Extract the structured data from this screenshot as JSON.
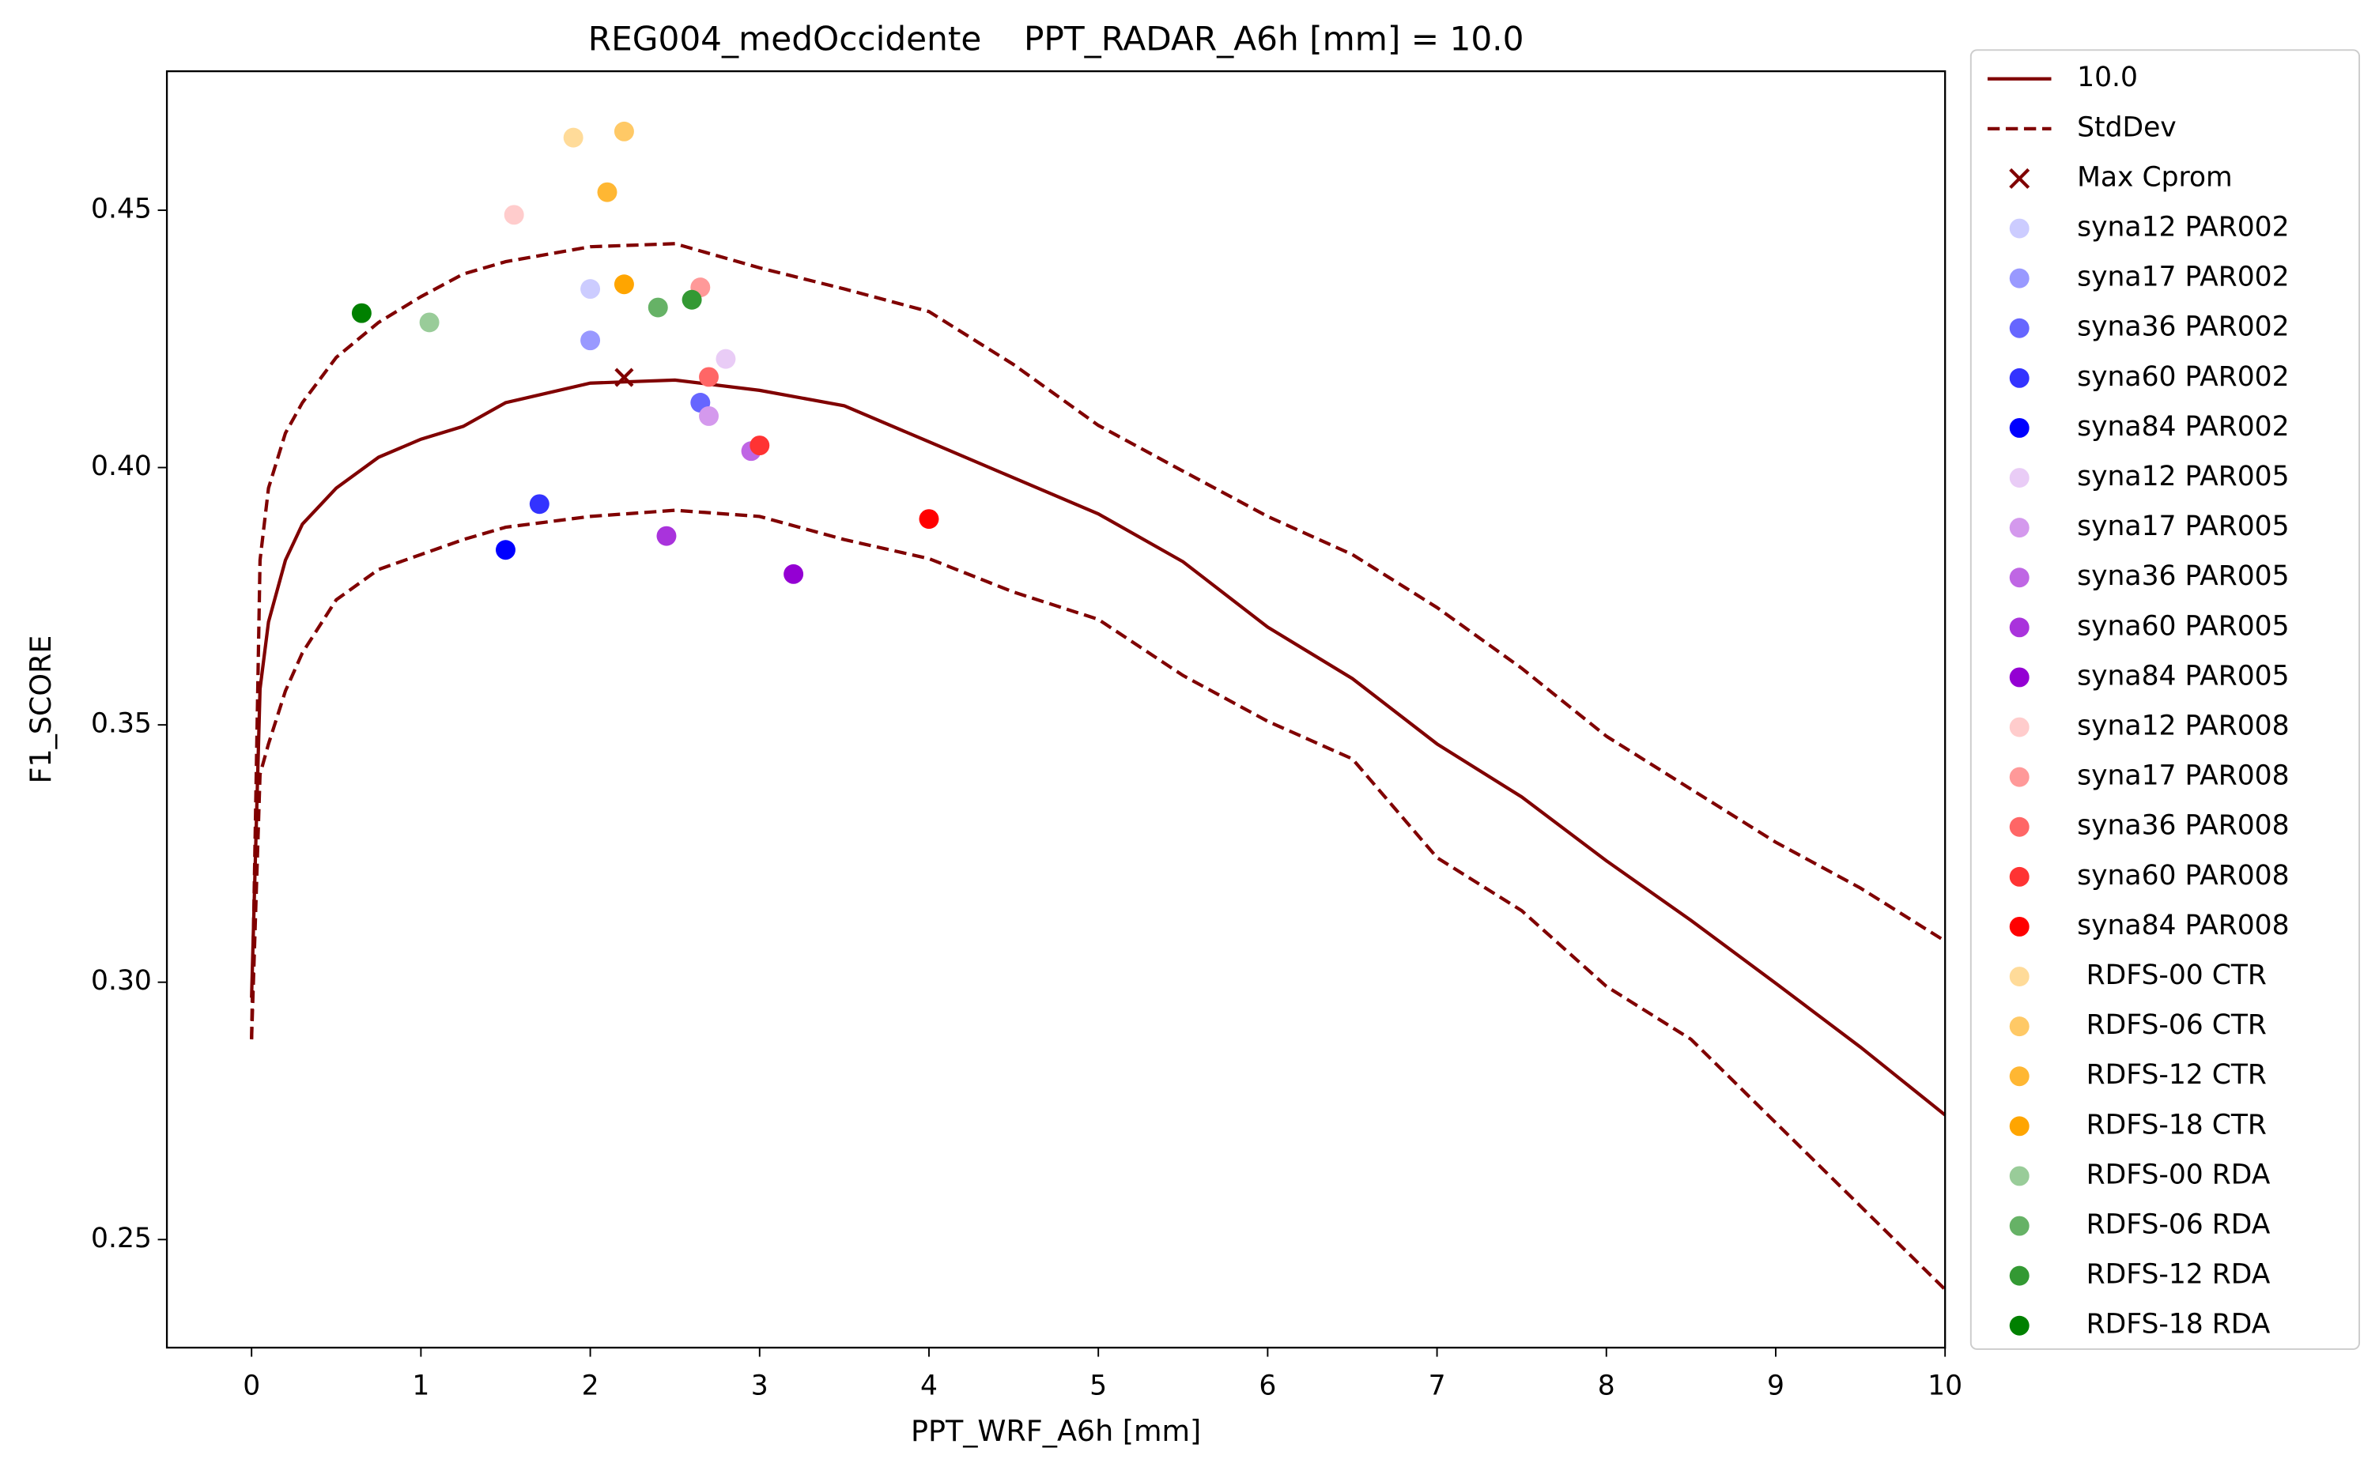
{
  "chart_data": {
    "type": "line",
    "title": "REG004_medOccidente    PPT_RADAR_A6h [mm] = 10.0",
    "xlabel": "PPT_WRF_A6h [mm]",
    "ylabel": "F1_SCORE",
    "xlim": [
      -0.5,
      10
    ],
    "ylim": [
      0.229,
      0.477
    ],
    "xticks": [
      0,
      1,
      2,
      3,
      4,
      5,
      6,
      7,
      8,
      9,
      10
    ],
    "yticks": [
      0.25,
      {
        "value": 0.3,
        "label": "0.30"
      },
      0.35,
      {
        "value": 0.4,
        "label": "0.40"
      },
      0.45
    ],
    "legend": "outside-right",
    "x": [
      0,
      0.05,
      0.1,
      0.2,
      0.3,
      0.5,
      0.75,
      1,
      1.25,
      1.5,
      2,
      2.5,
      3,
      3.5,
      4,
      4.5,
      5,
      5.5,
      6,
      6.5,
      7,
      7.5,
      8,
      8.5,
      9,
      9.5,
      10
    ],
    "series": [
      {
        "name": "10.0",
        "kind": "line",
        "color": "#800000",
        "values": [
          0.297,
          0.357,
          0.37,
          0.382,
          0.389,
          0.396,
          0.402,
          0.4055,
          0.408,
          0.4126,
          0.4164,
          0.417,
          0.415,
          0.412,
          0.405,
          0.398,
          0.391,
          0.3817,
          0.369,
          0.359,
          0.3463,
          0.336,
          0.3236,
          0.312,
          0.2998,
          0.2874,
          0.2742
        ]
      },
      {
        "name": "StdDev",
        "kind": "dashed",
        "color": "#800000",
        "values": [
          0.289,
          0.382,
          0.396,
          0.4067,
          0.4126,
          0.4214,
          0.4282,
          0.4332,
          0.4376,
          0.44,
          0.4429,
          0.4435,
          0.4388,
          0.4347,
          0.4303,
          0.42,
          0.4082,
          0.3993,
          0.3905,
          0.3831,
          0.3728,
          0.361,
          0.3478,
          0.3375,
          0.3272,
          0.3183,
          0.308
        ],
        "values_lower": [
          0.2889,
          0.3404,
          0.3463,
          0.3566,
          0.364,
          0.3743,
          0.3802,
          0.3831,
          0.386,
          0.3884,
          0.3905,
          0.3917,
          0.3905,
          0.386,
          0.3823,
          0.3758,
          0.3705,
          0.3596,
          0.3507,
          0.3434,
          0.3242,
          0.3139,
          0.2992,
          0.2889,
          0.2727,
          0.2565,
          0.2403
        ]
      },
      {
        "name": "Max Cprom",
        "kind": "cross",
        "color": "#800000",
        "x": [
          2.2
        ],
        "values": [
          0.4175
        ]
      },
      {
        "name": "syna12 PAR002",
        "kind": "dot",
        "color": "#ccccff",
        "x": [
          2.0
        ],
        "values": [
          0.4347
        ]
      },
      {
        "name": "syna17 PAR002",
        "kind": "dot",
        "color": "#9999ff",
        "x": [
          2.0
        ],
        "values": [
          0.4247
        ]
      },
      {
        "name": "syna36 PAR002",
        "kind": "dot",
        "color": "#6666ff",
        "x": [
          2.65
        ],
        "values": [
          0.4126
        ]
      },
      {
        "name": "syna60 PAR002",
        "kind": "dot",
        "color": "#3333ff",
        "x": [
          1.7
        ],
        "values": [
          0.3929
        ]
      },
      {
        "name": "syna84 PAR002",
        "kind": "dot",
        "color": "#0000ff",
        "x": [
          1.5
        ],
        "values": [
          0.384
        ]
      },
      {
        "name": "syna12 PAR005",
        "kind": "dot",
        "color": "#e9ccf6",
        "x": [
          2.8
        ],
        "values": [
          0.4211
        ]
      },
      {
        "name": "syna17 PAR005",
        "kind": "dot",
        "color": "#d499ed",
        "x": [
          2.7
        ],
        "values": [
          0.41
        ]
      },
      {
        "name": "syna36 PAR005",
        "kind": "dot",
        "color": "#bf66e4",
        "x": [
          2.95
        ],
        "values": [
          0.4032
        ]
      },
      {
        "name": "syna60 PAR005",
        "kind": "dot",
        "color": "#a933dc",
        "x": [
          2.45
        ],
        "values": [
          0.3867
        ]
      },
      {
        "name": "syna84 PAR005",
        "kind": "dot",
        "color": "#9400d3",
        "x": [
          3.2
        ],
        "values": [
          0.3793
        ]
      },
      {
        "name": "syna12 PAR008",
        "kind": "dot",
        "color": "#ffcccc",
        "x": [
          1.55
        ],
        "values": [
          0.4491
        ]
      },
      {
        "name": "syna17 PAR008",
        "kind": "dot",
        "color": "#ff9999",
        "x": [
          2.65
        ],
        "values": [
          0.435
        ]
      },
      {
        "name": "syna36 PAR008",
        "kind": "dot",
        "color": "#ff6666",
        "x": [
          2.7
        ],
        "values": [
          0.4176
        ]
      },
      {
        "name": "syna60 PAR008",
        "kind": "dot",
        "color": "#ff3333",
        "x": [
          3.0
        ],
        "values": [
          0.4043
        ]
      },
      {
        "name": "syna84 PAR008",
        "kind": "dot",
        "color": "#ff0000",
        "x": [
          4.0
        ],
        "values": [
          0.39
        ]
      },
      {
        "name": "RDFS-00 CTR",
        "kind": "dot",
        "color": "#ffdb99",
        "x": [
          1.9
        ],
        "values": [
          0.4641
        ]
      },
      {
        "name": "RDFS-06 CTR",
        "kind": "dot",
        "color": "#ffc966",
        "x": [
          2.2
        ],
        "values": [
          0.4653
        ]
      },
      {
        "name": "RDFS-12 CTR",
        "kind": "dot",
        "color": "#ffb733",
        "x": [
          2.1
        ],
        "values": [
          0.4535
        ]
      },
      {
        "name": "RDFS-18 CTR",
        "kind": "dot",
        "color": "#ffa500",
        "x": [
          2.2
        ],
        "values": [
          0.4356
        ]
      },
      {
        "name": "RDFS-00 RDA",
        "kind": "dot",
        "color": "#99cc99",
        "x": [
          1.05
        ],
        "values": [
          0.4282
        ]
      },
      {
        "name": "RDFS-06 RDA",
        "kind": "dot",
        "color": "#66b266",
        "x": [
          2.4
        ],
        "values": [
          0.4311
        ]
      },
      {
        "name": "RDFS-12 RDA",
        "kind": "dot",
        "color": "#339933",
        "x": [
          2.6
        ],
        "values": [
          0.4326
        ]
      },
      {
        "name": "RDFS-18 RDA",
        "kind": "dot",
        "color": "#008000",
        "x": [
          0.65
        ],
        "values": [
          0.43
        ]
      }
    ]
  }
}
